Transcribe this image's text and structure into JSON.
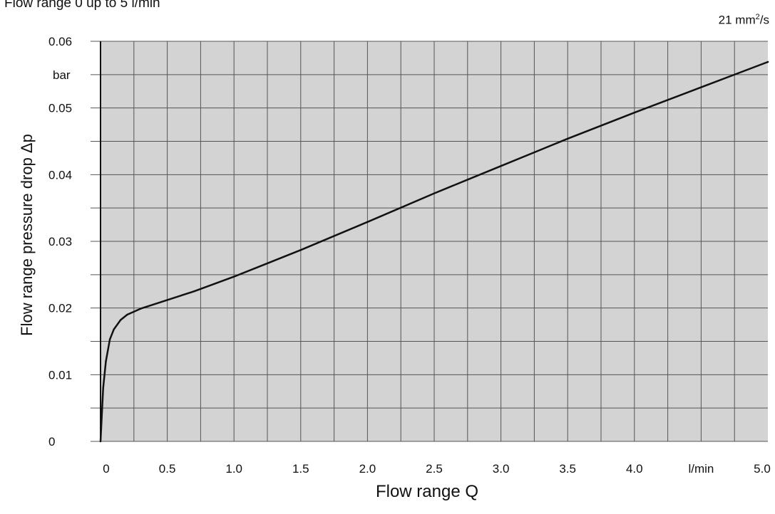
{
  "header": {
    "title": "Flow range 0 up to 5 l/min",
    "viscosity_value": "21 mm",
    "viscosity_exp": "2",
    "viscosity_tail": "/s"
  },
  "chart_data": {
    "type": "line",
    "title": "Flow range 0 up to 5 l/min",
    "xlabel": "Flow range Q",
    "ylabel": "Flow range pressure drop Δp",
    "x_unit": "l/min",
    "y_unit": "bar",
    "xlim": [
      0,
      5.0
    ],
    "ylim": [
      0,
      0.06
    ],
    "grid": true,
    "background": "#d3d3d3",
    "line_color": "#111111",
    "x_ticks": [
      {
        "value": 0,
        "label": "0"
      },
      {
        "value": 0.5,
        "label": "0.5"
      },
      {
        "value": 1.0,
        "label": "1.0"
      },
      {
        "value": 1.5,
        "label": "1.5"
      },
      {
        "value": 2.0,
        "label": "2.0"
      },
      {
        "value": 2.5,
        "label": "2.5"
      },
      {
        "value": 3.0,
        "label": "3.0"
      },
      {
        "value": 3.5,
        "label": "3.5"
      },
      {
        "value": 4.0,
        "label": "4.0"
      },
      {
        "value": 4.5,
        "label": "l/min"
      },
      {
        "value": 5.0,
        "label": "5.0"
      }
    ],
    "y_ticks": [
      {
        "value": 0,
        "label": "0"
      },
      {
        "value": 0.01,
        "label": "0.01"
      },
      {
        "value": 0.02,
        "label": "0.02"
      },
      {
        "value": 0.03,
        "label": "0.03"
      },
      {
        "value": 0.04,
        "label": "0.04"
      },
      {
        "value": 0.05,
        "label": "0.05"
      },
      {
        "value": 0.055,
        "label": "bar"
      },
      {
        "value": 0.06,
        "label": "0.06"
      }
    ],
    "series": [
      {
        "x": [
          0,
          0.02,
          0.04,
          0.07,
          0.1,
          0.15,
          0.2,
          0.3,
          0.5,
          0.7,
          1.0,
          1.5,
          2.0,
          2.5,
          3.0,
          3.5,
          4.0,
          4.5,
          5.0
        ],
        "values": [
          0,
          0.008,
          0.012,
          0.0153,
          0.0168,
          0.0182,
          0.019,
          0.0199,
          0.0212,
          0.0225,
          0.0247,
          0.0287,
          0.0329,
          0.0372,
          0.0413,
          0.0454,
          0.0493,
          0.0531,
          0.0569
        ]
      }
    ]
  }
}
